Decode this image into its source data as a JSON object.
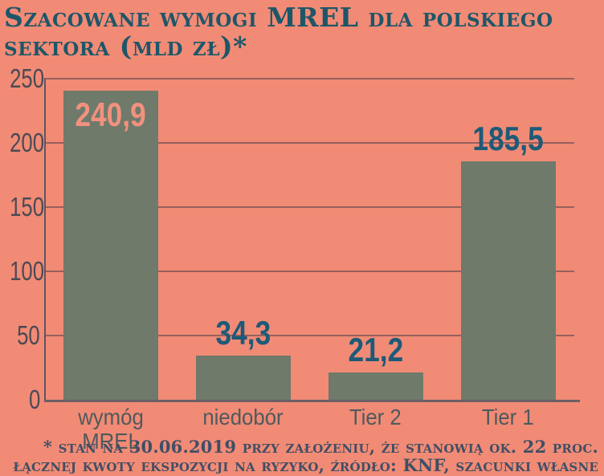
{
  "title": {
    "line1": "Szacowane wymogi MREL dla polskiego",
    "line2": "sektora (mld zł)*"
  },
  "chart_data": {
    "type": "bar",
    "title": "Szacowane wymogi MREL dla polskiego sektora (mld zł)*",
    "categories": [
      "wymóg MREL",
      "niedobór",
      "Tier 2",
      "Tier 1"
    ],
    "values": [
      240.9,
      34.3,
      21.2,
      185.5
    ],
    "value_labels": [
      "240,9",
      "34,3",
      "21,2",
      "185,5"
    ],
    "value_label_placement": [
      "inside",
      "above",
      "above",
      "above"
    ],
    "ylim": [
      0,
      250
    ],
    "yticks": [
      0,
      50,
      100,
      150,
      200,
      250
    ],
    "grid": true,
    "legend": "none",
    "colors": {
      "background": "#f18b75",
      "bar": "#6f7a6b",
      "value_label_outside": "#1e5a78",
      "value_label_inside": "#f2917e",
      "axis": "#5c5662",
      "gridline": "#8a6c6f",
      "ytick_text": "#4b4a55",
      "xtick_text": "#4f595d",
      "title_text": "#1e5669",
      "footnote_text": "#414e66"
    }
  },
  "footnote": {
    "line1": "* stan na 30.06.2019 przy założeniu, że stanowią ok. 22 proc.",
    "line2": "łącznej kwoty ekspozycji na ryzyko, źródło: KNF, szacunki własne"
  }
}
